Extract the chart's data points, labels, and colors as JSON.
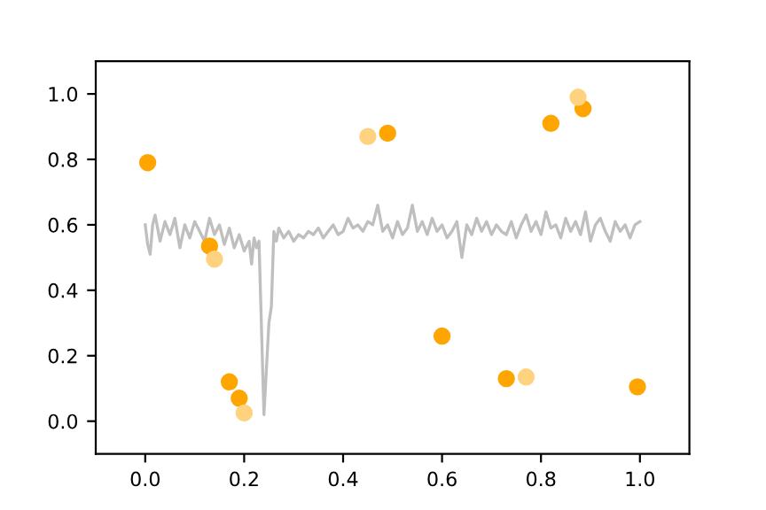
{
  "chart_data": {
    "type": "scatter",
    "xlim": [
      -0.1,
      1.1
    ],
    "ylim": [
      -0.1,
      1.1
    ],
    "xticks": [
      {
        "value": 0,
        "label": "0.0"
      },
      0.2,
      0.4,
      0.6,
      0.8,
      {
        "value": 1,
        "label": "1.0"
      }
    ],
    "yticks": [
      {
        "value": 0,
        "label": "0.0"
      },
      0.2,
      0.4,
      0.6,
      0.8,
      {
        "value": 1,
        "label": "1.0"
      }
    ],
    "grid": false,
    "marker": "circle",
    "series": [
      {
        "type": "line",
        "color": "#bfbfbf",
        "line_style": "solid",
        "marker": "none",
        "x": [
          0.0,
          0.005,
          0.01,
          0.015,
          0.02,
          0.03,
          0.04,
          0.05,
          0.06,
          0.07,
          0.08,
          0.09,
          0.1,
          0.11,
          0.12,
          0.13,
          0.14,
          0.15,
          0.16,
          0.17,
          0.18,
          0.19,
          0.2,
          0.21,
          0.215,
          0.22,
          0.225,
          0.23,
          0.24,
          0.25,
          0.255,
          0.26,
          0.265,
          0.27,
          0.28,
          0.29,
          0.3,
          0.31,
          0.32,
          0.33,
          0.34,
          0.35,
          0.36,
          0.37,
          0.38,
          0.39,
          0.4,
          0.41,
          0.42,
          0.43,
          0.44,
          0.45,
          0.46,
          0.47,
          0.48,
          0.49,
          0.5,
          0.51,
          0.52,
          0.53,
          0.54,
          0.55,
          0.56,
          0.57,
          0.58,
          0.59,
          0.6,
          0.61,
          0.62,
          0.63,
          0.64,
          0.65,
          0.66,
          0.67,
          0.68,
          0.69,
          0.7,
          0.71,
          0.72,
          0.73,
          0.74,
          0.75,
          0.76,
          0.77,
          0.78,
          0.79,
          0.8,
          0.81,
          0.82,
          0.83,
          0.84,
          0.85,
          0.86,
          0.87,
          0.88,
          0.89,
          0.9,
          0.91,
          0.92,
          0.93,
          0.94,
          0.95,
          0.96,
          0.97,
          0.98,
          0.99,
          1.0
        ],
        "values": [
          0.6,
          0.54,
          0.51,
          0.6,
          0.63,
          0.55,
          0.61,
          0.57,
          0.62,
          0.53,
          0.6,
          0.56,
          0.61,
          0.58,
          0.55,
          0.62,
          0.57,
          0.6,
          0.54,
          0.59,
          0.53,
          0.57,
          0.52,
          0.55,
          0.48,
          0.56,
          0.53,
          0.55,
          0.02,
          0.3,
          0.35,
          0.58,
          0.55,
          0.59,
          0.56,
          0.58,
          0.55,
          0.57,
          0.56,
          0.58,
          0.57,
          0.59,
          0.56,
          0.58,
          0.6,
          0.57,
          0.58,
          0.62,
          0.59,
          0.6,
          0.58,
          0.61,
          0.6,
          0.66,
          0.58,
          0.6,
          0.56,
          0.61,
          0.57,
          0.59,
          0.66,
          0.58,
          0.61,
          0.57,
          0.62,
          0.58,
          0.6,
          0.56,
          0.58,
          0.61,
          0.5,
          0.6,
          0.57,
          0.62,
          0.58,
          0.61,
          0.57,
          0.6,
          0.58,
          0.57,
          0.61,
          0.56,
          0.6,
          0.63,
          0.58,
          0.61,
          0.57,
          0.64,
          0.59,
          0.6,
          0.56,
          0.62,
          0.58,
          0.61,
          0.57,
          0.64,
          0.55,
          0.6,
          0.62,
          0.58,
          0.55,
          0.61,
          0.58,
          0.6,
          0.56,
          0.6,
          0.61
        ]
      },
      {
        "color": "#ffa500",
        "x": [
          0.005,
          0.13,
          0.17,
          0.19,
          0.49,
          0.6,
          0.73,
          0.82,
          0.885,
          0.995
        ],
        "values": [
          0.79,
          0.535,
          0.12,
          0.07,
          0.88,
          0.26,
          0.13,
          0.91,
          0.955,
          0.105
        ]
      },
      {
        "color": "#ffd280",
        "x": [
          0.14,
          0.2,
          0.45,
          0.77,
          0.875
        ],
        "values": [
          0.495,
          0.025,
          0.87,
          0.135,
          0.99
        ]
      }
    ]
  }
}
